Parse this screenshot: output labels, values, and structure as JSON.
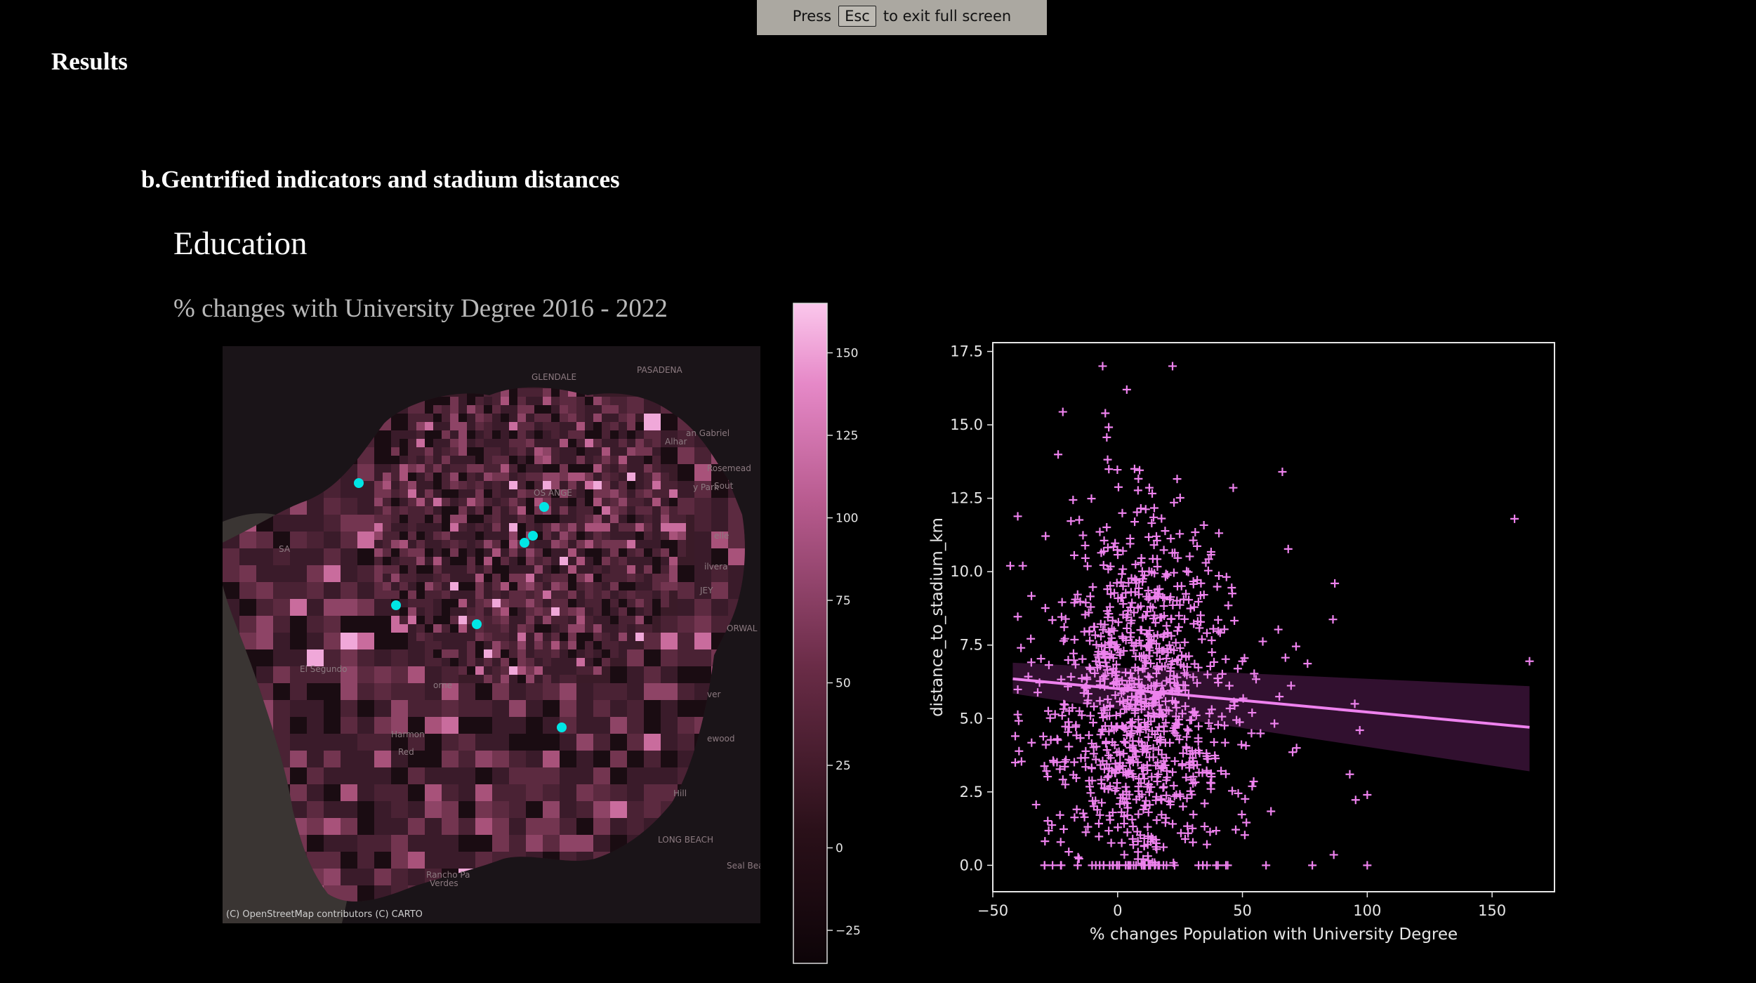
{
  "banner": {
    "press": "Press",
    "key": "Esc",
    "rest": "to exit full screen"
  },
  "headings": {
    "results": "Results",
    "section": "b.Gentrified indicators and stadium distances",
    "topic": "Education",
    "subtitle": "% changes with University Degree 2016 - 2022"
  },
  "map": {
    "attribution": "(C) OpenStreetMap contributors (C) CARTO",
    "place_labels": [
      "GLENDALE",
      "PASADENA",
      "an Gabriel",
      "Alhar",
      "Rosemead",
      "y Park",
      "Sout",
      "OS ANGE",
      "SA",
      "El Segundo",
      "Harmon",
      "Red",
      "Rancho Pa",
      "Verdes",
      "LONG BEACH",
      "Seal Beach",
      "JEY",
      "ORWAL",
      "ewood",
      "Hill",
      "orne",
      "elle",
      "ilvera",
      "ver"
    ],
    "stadium_color": "#00e5e5"
  },
  "colorbar": {
    "ticks": [
      "150",
      "125",
      "100",
      "75",
      "50",
      "25",
      "0",
      "−25"
    ],
    "vmin": -35,
    "vmax": 165
  },
  "chart_data": {
    "type": "scatter",
    "xlabel": "% changes Population with University Degree",
    "ylabel": "distance_to_stadium_km",
    "xlim": [
      -50,
      175
    ],
    "ylim": [
      -0.9,
      17.8
    ],
    "xticks": [
      "−50",
      "0",
      "50",
      "100",
      "150"
    ],
    "yticks": [
      "0.0",
      "2.5",
      "5.0",
      "7.5",
      "10.0",
      "12.5",
      "15.0",
      "17.5"
    ],
    "marker": "+",
    "color": "#ee82ee",
    "regression": {
      "x": [
        -42,
        165
      ],
      "y": [
        6.35,
        4.7
      ],
      "band_upper": [
        6.9,
        6.1
      ],
      "band_lower": [
        5.85,
        3.2
      ]
    },
    "outliers": [
      {
        "x": 159,
        "y": 11.8
      },
      {
        "x": 165,
        "y": 6.95
      },
      {
        "x": -43,
        "y": 10.2
      },
      {
        "x": -38,
        "y": 10.2
      },
      {
        "x": -41,
        "y": 4.4
      },
      {
        "x": -41,
        "y": 3.5
      },
      {
        "x": -6,
        "y": 17.0
      },
      {
        "x": 22,
        "y": 17.0
      },
      {
        "x": 66,
        "y": 13.4
      },
      {
        "x": 95,
        "y": 5.5
      },
      {
        "x": 97,
        "y": 4.6
      },
      {
        "x": 100,
        "y": 2.4
      },
      {
        "x": 78,
        "y": 0.0
      },
      {
        "x": 87,
        "y": 9.6
      },
      {
        "x": 93,
        "y": 3.1
      }
    ]
  }
}
